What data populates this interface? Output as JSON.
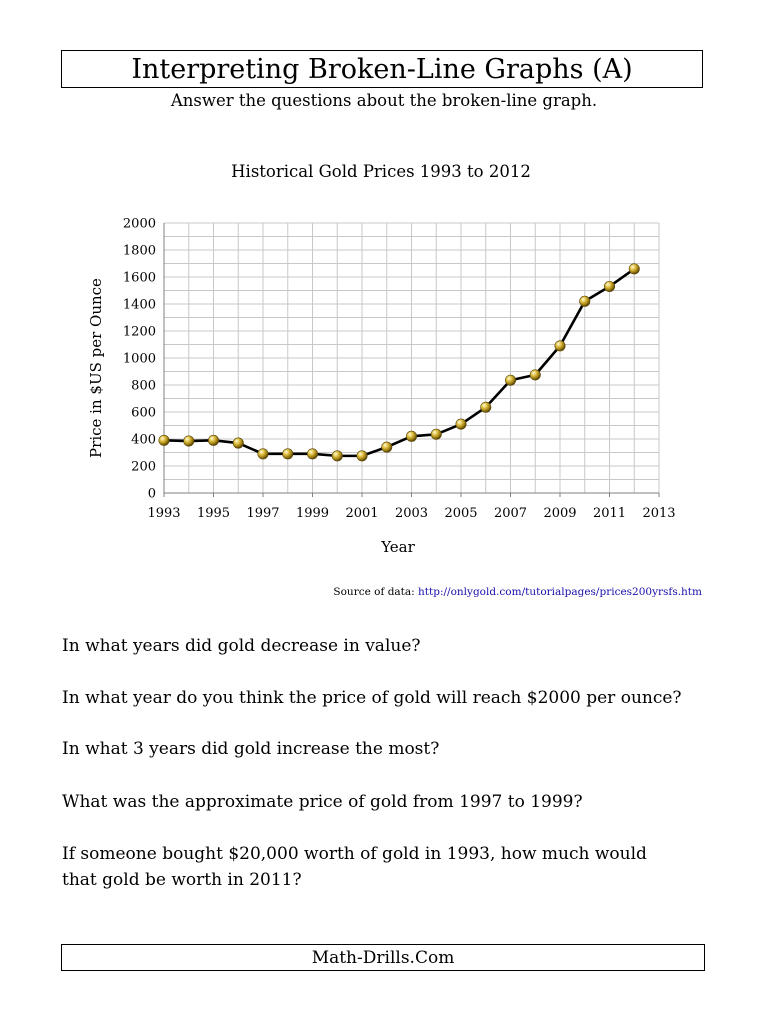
{
  "header": {
    "title": "Interpreting Broken-Line Graphs (A)",
    "subtitle": "Answer the questions about the broken-line graph."
  },
  "chart_data": {
    "type": "line",
    "title": "Historical Gold Prices 1993 to 2012",
    "xlabel": "Year",
    "ylabel": "Price in $US per Ounce",
    "xlim": [
      1993,
      2013
    ],
    "ylim": [
      0,
      2000
    ],
    "x_ticks": [
      1993,
      1995,
      1997,
      1999,
      2001,
      2003,
      2005,
      2007,
      2009,
      2011,
      2013
    ],
    "y_ticks": [
      0,
      200,
      400,
      600,
      800,
      1000,
      1200,
      1400,
      1600,
      1800,
      2000
    ],
    "grid": true,
    "marker_color": "#c9a21c",
    "line_color": "#000000",
    "series": [
      {
        "x": [
          1993,
          1994,
          1995,
          1996,
          1997,
          1998,
          1999,
          2000,
          2001,
          2002,
          2003,
          2004,
          2005,
          2006,
          2007,
          2008,
          2009,
          2010,
          2011,
          2012
        ],
        "y": [
          390,
          385,
          390,
          370,
          290,
          290,
          290,
          275,
          275,
          340,
          420,
          435,
          510,
          635,
          835,
          875,
          1090,
          1420,
          1530,
          1660
        ]
      }
    ]
  },
  "source": {
    "label": "Source of data:",
    "url_text": "http://onlygold.com/tutorialpages/prices200yrsfs.htm"
  },
  "questions": [
    "In what years did gold decrease in value?",
    "In what year do you think the price of gold will reach $2000 per ounce?",
    "In what 3 years did gold increase the most?",
    "What was the approximate price of gold from 1997 to 1999?",
    "If someone bought $20,000 worth of gold in 1993, how much would",
    "that gold be worth in 2011?"
  ],
  "footer": {
    "text": "Math-Drills.Com"
  }
}
